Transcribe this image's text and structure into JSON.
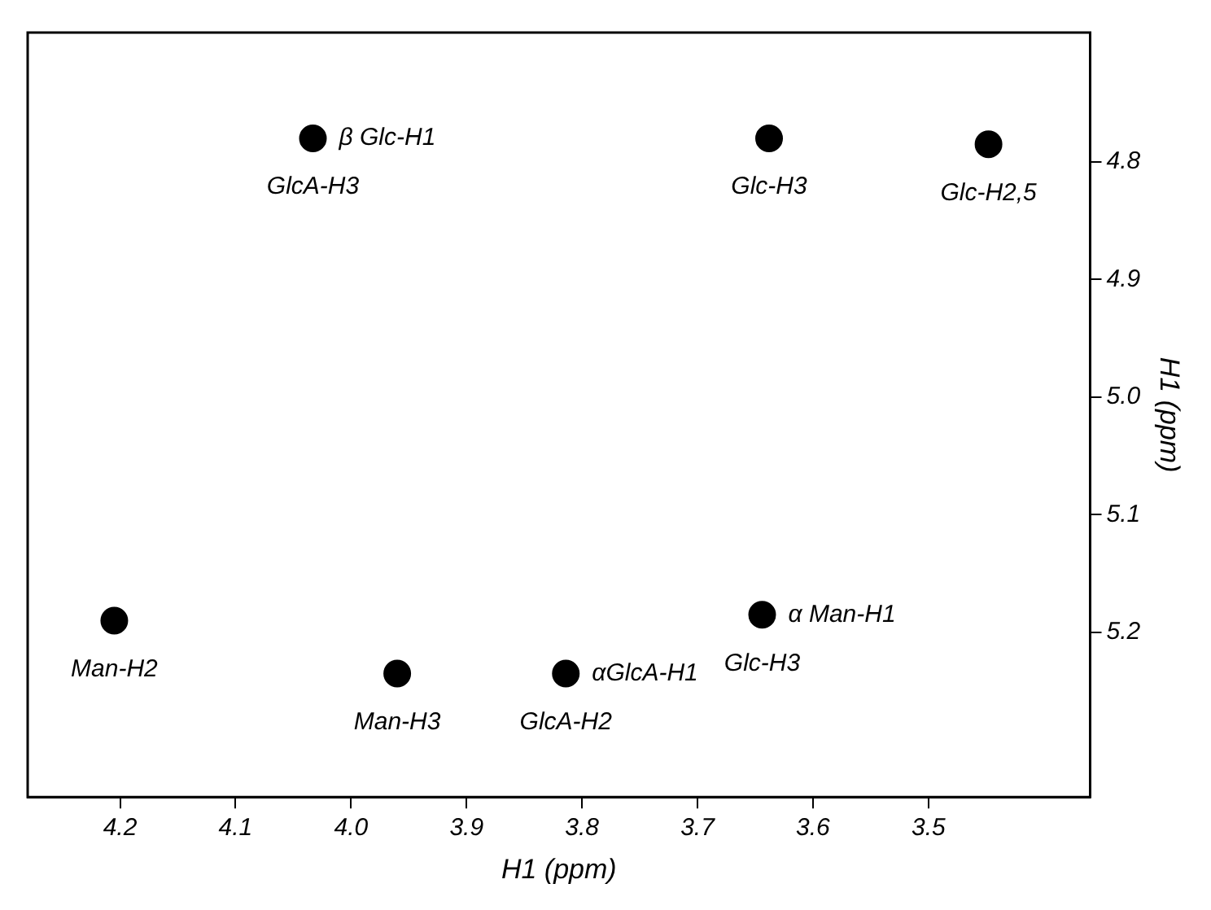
{
  "chart_data": {
    "type": "scatter",
    "xlabel": "H1 (ppm)",
    "ylabel": "H1 (ppm)",
    "x": [
      4.033,
      3.638,
      3.448,
      4.205,
      3.96,
      3.814,
      3.644
    ],
    "series": [
      {
        "color": "#000000",
        "values": [
          4.78,
          4.78,
          4.785,
          5.19,
          5.235,
          5.235,
          5.185
        ]
      }
    ],
    "xlim": [
      4.28,
      3.36
    ],
    "xticks": [
      4.2,
      4.1,
      {
        "value": 4.0,
        "label": "4.0"
      },
      3.9,
      3.8,
      3.7,
      3.6,
      3.5
    ],
    "ylim": [
      5.34,
      4.69
    ],
    "yticks": [
      4.8,
      4.9,
      {
        "value": 5.0,
        "label": "5.0"
      },
      5.1,
      5.2
    ],
    "marker": "circle",
    "grid": false,
    "legend": false,
    "annotations": [
      {
        "text": "GlcA-H3",
        "x": 4.033,
        "y": 4.78
      },
      {
        "text": "β Glc-H1",
        "x": 4.033,
        "y": 4.78
      },
      {
        "text": "Glc-H3",
        "x": 3.638,
        "y": 4.78
      },
      {
        "text": "Glc-H2,5",
        "x": 3.448,
        "y": 4.785
      },
      {
        "text": "Man-H2",
        "x": 4.205,
        "y": 5.19
      },
      {
        "text": "Glc-H3",
        "x": 3.644,
        "y": 5.185
      },
      {
        "text": "α Man-H1",
        "x": 3.644,
        "y": 5.185
      },
      {
        "text": "Man-H3",
        "x": 3.96,
        "y": 5.235
      },
      {
        "text": "GlcA-H2",
        "x": 3.814,
        "y": 5.235
      },
      {
        "text": "αGlcA-H1",
        "x": 3.814,
        "y": 5.235
      }
    ]
  }
}
